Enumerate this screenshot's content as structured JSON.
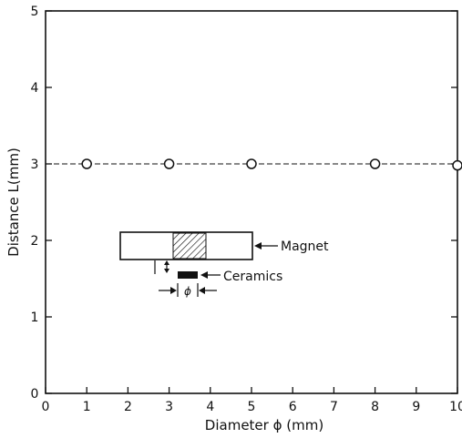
{
  "chart_data": {
    "type": "scatter",
    "xlabel": "Diameter ϕ (mm)",
    "ylabel": "Distance  L(mm)",
    "xlim": [
      0,
      10
    ],
    "ylim": [
      0,
      5
    ],
    "xticks": [
      0,
      1,
      2,
      3,
      4,
      5,
      6,
      7,
      8,
      9,
      10
    ],
    "yticks": [
      0,
      1,
      2,
      3,
      4,
      5
    ],
    "grid": false,
    "series": [
      {
        "marker": "open-circle",
        "x": [
          1,
          3,
          5,
          8,
          10
        ],
        "y": [
          3.0,
          3.0,
          3.0,
          3.0,
          2.98
        ]
      }
    ],
    "trend_line": {
      "style": "dashed",
      "y": 3.0
    },
    "inset": {
      "magnet_label": "Magnet",
      "ceramics_label": "Ceramics",
      "phi_symbol": "ϕ"
    }
  }
}
